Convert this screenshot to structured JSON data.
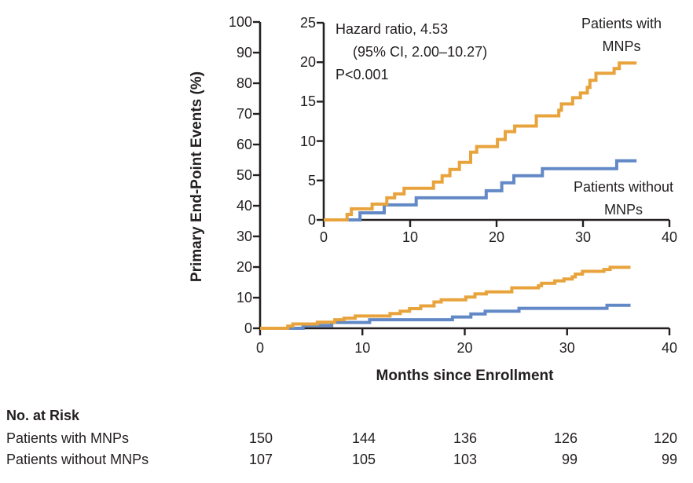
{
  "figure": {
    "y_axis_title": "Primary End-Point Events (%)",
    "x_axis_title": "Months since Enrollment",
    "annotation": {
      "line1": "Hazard ratio, 4.53",
      "line2": "(95% CI, 2.00–10.27)",
      "line3": "P<0.001"
    },
    "legend": {
      "with_line1": "Patients with",
      "with_line2": "MNPs",
      "without_line1": "Patients without",
      "without_line2": "MNPs"
    },
    "colors": {
      "with_mnps": "#E8A33C",
      "without_mnps": "#6289C6",
      "axis": "#231F20"
    }
  },
  "risk_table": {
    "title": "No. at Risk",
    "months": [
      0,
      10,
      20,
      30,
      40
    ],
    "rows": [
      {
        "label": "Patients with MNPs",
        "values": [
          "150",
          "144",
          "136",
          "126",
          "120"
        ]
      },
      {
        "label": "Patients without MNPs",
        "values": [
          "107",
          "105",
          "103",
          "99",
          "99"
        ]
      }
    ]
  },
  "chart_data": [
    {
      "id": "main",
      "type": "line",
      "subtype": "step",
      "title": "",
      "xlabel": "Months since Enrollment",
      "ylabel": "Primary End-Point Events (%)",
      "xlim": [
        0,
        40
      ],
      "ylim": [
        0,
        100
      ],
      "xticks": [
        0,
        10,
        20,
        30,
        40
      ],
      "yticks": [
        0,
        10,
        20,
        30,
        40,
        50,
        60,
        70,
        80,
        90,
        100
      ],
      "grid": false,
      "legend_position": "none",
      "series": [
        {
          "name": "Patients without MNPs",
          "color": "#6289C6",
          "end_x": 36.2,
          "steps": [
            [
              4.2,
              0.9
            ],
            [
              7.0,
              1.9
            ],
            [
              10.7,
              2.8
            ],
            [
              18.8,
              3.7
            ],
            [
              20.6,
              4.7
            ],
            [
              22.0,
              5.6
            ],
            [
              25.3,
              6.5
            ],
            [
              33.9,
              7.5
            ]
          ]
        },
        {
          "name": "Patients with MNPs",
          "color": "#E8A33C",
          "end_x": 36.2,
          "steps": [
            [
              2.7,
              0.7
            ],
            [
              3.2,
              1.4
            ],
            [
              5.6,
              2.0
            ],
            [
              7.3,
              2.8
            ],
            [
              8.2,
              3.3
            ],
            [
              9.3,
              4.0
            ],
            [
              12.7,
              4.8
            ],
            [
              13.7,
              5.6
            ],
            [
              14.6,
              6.4
            ],
            [
              15.7,
              7.3
            ],
            [
              17.0,
              8.6
            ],
            [
              17.7,
              9.3
            ],
            [
              20.1,
              10.2
            ],
            [
              21.0,
              11.2
            ],
            [
              22.1,
              11.9
            ],
            [
              24.6,
              13.2
            ],
            [
              27.2,
              13.9
            ],
            [
              27.5,
              14.7
            ],
            [
              28.8,
              15.5
            ],
            [
              29.7,
              16.1
            ],
            [
              30.5,
              16.8
            ],
            [
              30.8,
              17.7
            ],
            [
              31.5,
              18.6
            ],
            [
              33.6,
              19.2
            ],
            [
              34.2,
              19.9
            ]
          ]
        }
      ]
    },
    {
      "id": "inset",
      "type": "line",
      "subtype": "step",
      "title": "",
      "xlabel": "",
      "ylabel": "",
      "xlim": [
        0,
        40
      ],
      "ylim": [
        0,
        25
      ],
      "xticks": [
        0,
        10,
        20,
        30,
        40
      ],
      "yticks": [
        0,
        5,
        10,
        15,
        20,
        25
      ],
      "grid": false,
      "legend_position": "inside",
      "annotation": "Hazard ratio, 4.53 (95% CI, 2.00–10.27) P<0.001",
      "series_ref": 0
    }
  ]
}
